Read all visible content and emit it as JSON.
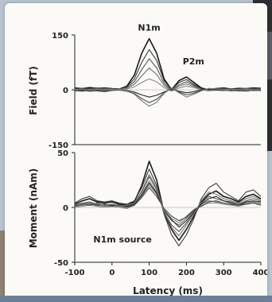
{
  "chart_data": [
    {
      "type": "line",
      "panel": "top",
      "title": "",
      "xlabel": "",
      "ylabel": "Field (fT)",
      "xlim": [
        -100,
        400
      ],
      "ylim": [
        -150,
        150
      ],
      "yticks": [
        "150",
        "0",
        "-150"
      ],
      "annotations": [
        {
          "text": "N1m",
          "x": 100,
          "y": 162
        },
        {
          "text": "P2m",
          "x": 190,
          "y": 70
        }
      ],
      "x": [
        -100,
        -80,
        -60,
        -40,
        -20,
        0,
        20,
        40,
        60,
        80,
        100,
        120,
        140,
        160,
        180,
        200,
        220,
        240,
        260,
        280,
        300,
        320,
        340,
        360,
        380,
        400
      ],
      "series": [
        {
          "values": [
            5,
            3,
            6,
            4,
            5,
            3,
            2,
            10,
            40,
            100,
            140,
            100,
            30,
            0,
            25,
            35,
            20,
            5,
            0,
            3,
            5,
            2,
            4,
            3,
            5,
            4
          ]
        },
        {
          "values": [
            2,
            4,
            3,
            5,
            2,
            3,
            1,
            8,
            30,
            75,
            110,
            80,
            25,
            0,
            20,
            28,
            15,
            3,
            1,
            4,
            2,
            3,
            1,
            2,
            3,
            2
          ]
        },
        {
          "values": [
            3,
            1,
            2,
            3,
            4,
            2,
            2,
            6,
            22,
            55,
            85,
            60,
            18,
            -2,
            14,
            22,
            12,
            2,
            -1,
            2,
            3,
            1,
            2,
            4,
            2,
            3
          ]
        },
        {
          "values": [
            -2,
            0,
            1,
            -1,
            2,
            1,
            0,
            4,
            15,
            38,
            60,
            42,
            12,
            -3,
            10,
            16,
            9,
            1,
            -2,
            0,
            1,
            -1,
            0,
            2,
            1,
            0
          ]
        },
        {
          "values": [
            1,
            -1,
            0,
            2,
            -2,
            0,
            1,
            2,
            8,
            20,
            30,
            22,
            6,
            -4,
            5,
            10,
            6,
            0,
            -3,
            -1,
            0,
            2,
            -1,
            0,
            -2,
            1
          ]
        },
        {
          "values": [
            -3,
            -1,
            -4,
            -2,
            -3,
            -1,
            0,
            -2,
            -6,
            -14,
            -20,
            -15,
            -6,
            2,
            -4,
            -8,
            -5,
            0,
            2,
            -1,
            -2,
            0,
            -3,
            -1,
            -2,
            -1
          ]
        },
        {
          "values": [
            -2,
            -4,
            -1,
            -3,
            -5,
            -2,
            -1,
            -4,
            -10,
            -24,
            -35,
            -26,
            -8,
            4,
            -6,
            -14,
            -9,
            -2,
            3,
            1,
            -1,
            -3,
            -2,
            -4,
            -1,
            -2
          ]
        },
        {
          "values": [
            0,
            2,
            -1,
            1,
            0,
            -1,
            0,
            -3,
            -12,
            -30,
            -45,
            -34,
            -10,
            5,
            -8,
            -20,
            -12,
            -3,
            4,
            2,
            0,
            -2,
            1,
            -1,
            0,
            1
          ]
        }
      ]
    },
    {
      "type": "line",
      "panel": "bottom",
      "title": "",
      "xlabel": "Latency (ms)",
      "ylabel": "Moment (nAm)",
      "xlim": [
        -100,
        400
      ],
      "ylim": [
        -50,
        50
      ],
      "xticks": [
        "-100",
        "0",
        "100",
        "200",
        "300",
        "400"
      ],
      "yticks": [
        "50",
        "0",
        "-50"
      ],
      "annotations": [
        {
          "text": "N1m source",
          "x": -50,
          "y": -32
        }
      ],
      "x": [
        -100,
        -80,
        -60,
        -40,
        -20,
        0,
        20,
        40,
        60,
        80,
        100,
        120,
        140,
        160,
        180,
        200,
        220,
        240,
        260,
        280,
        300,
        320,
        340,
        360,
        380,
        400
      ],
      "series": [
        {
          "values": [
            3,
            6,
            8,
            5,
            4,
            5,
            3,
            2,
            5,
            20,
            42,
            25,
            -5,
            -20,
            -30,
            -20,
            -8,
            5,
            12,
            15,
            10,
            8,
            5,
            10,
            12,
            8
          ]
        },
        {
          "values": [
            4,
            8,
            10,
            6,
            5,
            6,
            4,
            3,
            6,
            18,
            35,
            20,
            -6,
            -25,
            -35,
            -25,
            -10,
            8,
            18,
            22,
            14,
            10,
            6,
            14,
            16,
            10
          ]
        },
        {
          "values": [
            2,
            4,
            5,
            3,
            2,
            3,
            2,
            1,
            4,
            14,
            28,
            16,
            -4,
            -16,
            -22,
            -14,
            -5,
            4,
            10,
            8,
            6,
            5,
            3,
            6,
            8,
            6
          ]
        },
        {
          "values": [
            1,
            2,
            3,
            2,
            1,
            2,
            1,
            0,
            3,
            12,
            24,
            14,
            -3,
            -12,
            -16,
            -10,
            -3,
            3,
            6,
            5,
            4,
            3,
            2,
            4,
            5,
            4
          ]
        },
        {
          "values": [
            0,
            1,
            2,
            1,
            0,
            1,
            0,
            -1,
            2,
            10,
            20,
            12,
            -2,
            -10,
            -14,
            -8,
            -2,
            2,
            4,
            4,
            3,
            2,
            1,
            3,
            4,
            3
          ]
        },
        {
          "values": [
            2,
            3,
            4,
            2,
            3,
            2,
            1,
            1,
            3,
            11,
            22,
            13,
            -3,
            -11,
            -18,
            -12,
            -4,
            3,
            8,
            10,
            6,
            4,
            2,
            5,
            6,
            5
          ]
        },
        {
          "values": [
            1,
            3,
            2,
            4,
            2,
            1,
            2,
            0,
            2,
            9,
            18,
            10,
            -1,
            -8,
            -12,
            -9,
            -2,
            1,
            5,
            6,
            4,
            3,
            2,
            3,
            4,
            2
          ]
        },
        {
          "values": [
            3,
            2,
            4,
            3,
            2,
            3,
            1,
            2,
            4,
            15,
            30,
            18,
            -4,
            -18,
            -26,
            -16,
            -6,
            6,
            14,
            12,
            8,
            6,
            4,
            8,
            10,
            7
          ]
        }
      ]
    }
  ]
}
